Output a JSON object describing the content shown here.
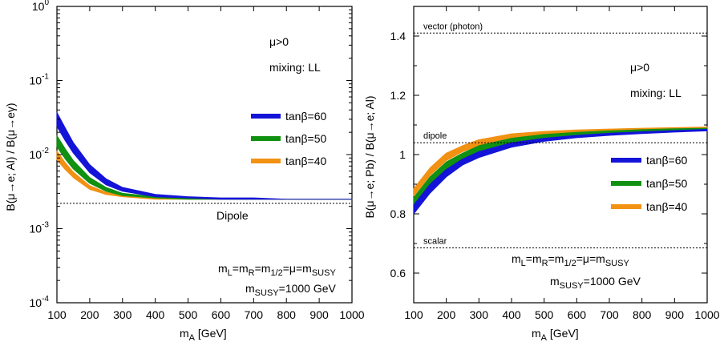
{
  "chart_data": [
    {
      "type": "line",
      "xlabel": "m_A [GeV]",
      "ylabel": "B(μ→e; Al) / B(μ→eγ)",
      "xlim": [
        100,
        1000
      ],
      "ylim": [
        0.0001,
        1
      ],
      "y_scale": "log",
      "x_ticks": [
        "100",
        "200",
        "300",
        "400",
        "500",
        "600",
        "700",
        "800",
        "900",
        "1000"
      ],
      "y_ticks": [
        {
          "value": 1,
          "mantissa": "10",
          "exp": "0"
        },
        {
          "value": 0.1,
          "mantissa": "10",
          "exp": "-1"
        },
        {
          "value": 0.01,
          "mantissa": "10",
          "exp": "-2"
        },
        {
          "value": 0.001,
          "mantissa": "10",
          "exp": "-3"
        },
        {
          "value": 0.0001,
          "mantissa": "10",
          "exp": "-4"
        }
      ],
      "annotations": {
        "sign": "μ>0",
        "mixing": "mixing: LL",
        "reference_label": "Dipole",
        "mass_relation": "m_L̃=m_R̃=m_1/2=μ=m_SUSY",
        "msusy": "m_SUSY=1000 GeV"
      },
      "reference_lines": [
        {
          "name": "Dipole",
          "y": 0.0022
        }
      ],
      "legend_position": "right",
      "grid": false,
      "x": [
        100,
        125,
        150,
        200,
        250,
        300,
        400,
        500,
        600,
        700,
        800,
        900,
        1000
      ],
      "series": [
        {
          "name": "tanβ=60",
          "color": "#1414d8",
          "upper": [
            0.037,
            0.023,
            0.0145,
            0.0073,
            0.0047,
            0.0036,
            0.0029,
            0.0027,
            0.0026,
            0.0026,
            0.0025,
            0.0025,
            0.0025
          ],
          "lower": [
            0.024,
            0.0155,
            0.0105,
            0.0057,
            0.0039,
            0.0032,
            0.0027,
            0.0026,
            0.0025,
            0.0025,
            0.0025,
            0.0025,
            0.0025
          ]
        },
        {
          "name": "tanβ=50",
          "color": "#119111",
          "upper": [
            0.018,
            0.012,
            0.0083,
            0.0049,
            0.0036,
            0.003,
            0.0027,
            0.0026,
            0.0025,
            0.0025,
            0.0025,
            0.0025,
            0.0025
          ],
          "lower": [
            0.0127,
            0.0088,
            0.0064,
            0.0041,
            0.0032,
            0.0028,
            0.0026,
            0.0025,
            0.0025,
            0.0025,
            0.0025,
            0.0025,
            0.0025
          ]
        },
        {
          "name": "tanβ=40",
          "color": "#f29112",
          "upper": [
            0.0112,
            0.0078,
            0.0058,
            0.0038,
            0.0031,
            0.0028,
            0.0026,
            0.0025,
            0.0025,
            0.0025,
            0.0025,
            0.0025,
            0.0025
          ],
          "lower": [
            0.0085,
            0.0063,
            0.0049,
            0.0034,
            0.0029,
            0.0027,
            0.0025,
            0.0025,
            0.0025,
            0.0025,
            0.0025,
            0.0025,
            0.0025
          ]
        }
      ]
    },
    {
      "type": "line",
      "xlabel": "m_A [GeV]",
      "ylabel": "B(μ→e; Pb) / B(μ→e; Al)",
      "xlim": [
        100,
        1000
      ],
      "ylim": [
        0.5,
        1.5
      ],
      "y_scale": "linear",
      "x_ticks": [
        "100",
        "200",
        "300",
        "400",
        "500",
        "600",
        "700",
        "800",
        "900",
        "1000"
      ],
      "y_ticks": [
        {
          "value": 0.6,
          "label": "0.6"
        },
        {
          "value": 0.8,
          "label": "0.8"
        },
        {
          "value": 1.0,
          "label": "1"
        },
        {
          "value": 1.2,
          "label": "1.2"
        },
        {
          "value": 1.4,
          "label": "1.4"
        }
      ],
      "annotations": {
        "sign": "μ>0",
        "mixing": "mixing: LL",
        "mass_relation": "m_L̃=m_R̃=m_1/2=μ=m_SUSY",
        "msusy": "m_SUSY=1000 GeV"
      },
      "reference_lines": [
        {
          "name": "vector (photon)",
          "y": 1.41
        },
        {
          "name": "dipole",
          "y": 1.04
        },
        {
          "name": "scalar",
          "y": 0.685
        }
      ],
      "legend_position": "lower-right",
      "grid": false,
      "x": [
        100,
        150,
        200,
        250,
        300,
        400,
        500,
        600,
        700,
        800,
        900,
        1000
      ],
      "series": [
        {
          "name": "tanβ=60",
          "color": "#1414d8",
          "upper": [
            0.83,
            0.9,
            0.95,
            0.985,
            1.01,
            1.04,
            1.055,
            1.065,
            1.072,
            1.077,
            1.081,
            1.085
          ],
          "lower": [
            0.8,
            0.87,
            0.925,
            0.965,
            0.99,
            1.025,
            1.045,
            1.057,
            1.065,
            1.071,
            1.076,
            1.08
          ]
        },
        {
          "name": "tanβ=50",
          "color": "#119111",
          "upper": [
            0.855,
            0.925,
            0.975,
            1.005,
            1.03,
            1.055,
            1.068,
            1.075,
            1.08,
            1.084,
            1.087,
            1.089
          ],
          "lower": [
            0.83,
            0.9,
            0.952,
            0.985,
            1.01,
            1.04,
            1.056,
            1.065,
            1.071,
            1.076,
            1.079,
            1.082
          ]
        },
        {
          "name": "tanβ=40",
          "color": "#f29112",
          "upper": [
            0.885,
            0.955,
            1.005,
            1.03,
            1.05,
            1.07,
            1.078,
            1.083,
            1.086,
            1.089,
            1.091,
            1.093
          ],
          "lower": [
            0.86,
            0.93,
            0.98,
            1.01,
            1.03,
            1.055,
            1.066,
            1.073,
            1.077,
            1.081,
            1.084,
            1.086
          ]
        }
      ]
    }
  ]
}
